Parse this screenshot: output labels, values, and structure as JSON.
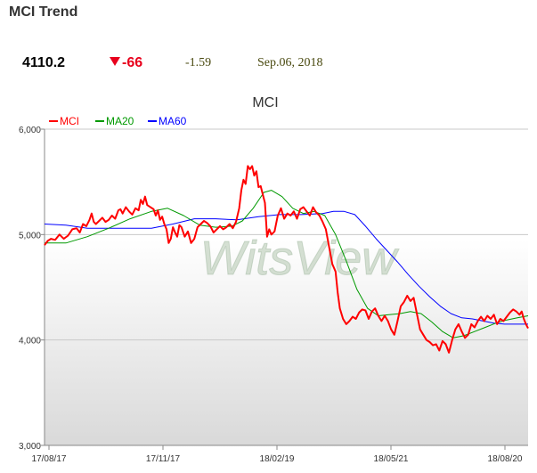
{
  "header": {
    "title": "MCI Trend",
    "price": "4110.2",
    "change": "-66",
    "change_pct": "-1.59",
    "date": "Sep.06, 2018",
    "down_color": "#e8001c"
  },
  "chart_data": {
    "type": "line",
    "title": "MCI",
    "watermark": "WitsView",
    "legend_position": "top-left",
    "ylim": [
      3000,
      6000
    ],
    "yticks": [
      "3,000",
      "4,000",
      "5,000",
      "6,000"
    ],
    "xticks": [
      "17/08/17",
      "17/11/17",
      "18/02/19",
      "18/05/21",
      "18/08/20"
    ],
    "grid": "horizontal",
    "series": [
      {
        "name": "MCI",
        "color": "#ff0000",
        "points": [
          [
            0,
            4900
          ],
          [
            3,
            4940
          ],
          [
            6,
            4960
          ],
          [
            10,
            4950
          ],
          [
            14,
            5000
          ],
          [
            18,
            4960
          ],
          [
            22,
            4990
          ],
          [
            26,
            5050
          ],
          [
            30,
            5060
          ],
          [
            33,
            5020
          ],
          [
            36,
            5100
          ],
          [
            39,
            5080
          ],
          [
            42,
            5140
          ],
          [
            44,
            5200
          ],
          [
            46,
            5120
          ],
          [
            48,
            5100
          ],
          [
            51,
            5130
          ],
          [
            54,
            5160
          ],
          [
            57,
            5120
          ],
          [
            60,
            5140
          ],
          [
            63,
            5180
          ],
          [
            66,
            5150
          ],
          [
            69,
            5230
          ],
          [
            71,
            5240
          ],
          [
            73,
            5200
          ],
          [
            76,
            5260
          ],
          [
            79,
            5220
          ],
          [
            82,
            5190
          ],
          [
            85,
            5250
          ],
          [
            88,
            5230
          ],
          [
            90,
            5330
          ],
          [
            92,
            5290
          ],
          [
            94,
            5360
          ],
          [
            96,
            5280
          ],
          [
            99,
            5260
          ],
          [
            102,
            5240
          ],
          [
            104,
            5180
          ],
          [
            106,
            5230
          ],
          [
            108,
            5140
          ],
          [
            110,
            5170
          ],
          [
            112,
            5100
          ],
          [
            114,
            5050
          ],
          [
            116,
            4920
          ],
          [
            118,
            4960
          ],
          [
            120,
            5070
          ],
          [
            122,
            5020
          ],
          [
            124,
            4980
          ],
          [
            126,
            5090
          ],
          [
            128,
            5070
          ],
          [
            131,
            4980
          ],
          [
            134,
            5030
          ],
          [
            137,
            4920
          ],
          [
            140,
            4960
          ],
          [
            143,
            5070
          ],
          [
            146,
            5100
          ],
          [
            149,
            5130
          ],
          [
            152,
            5110
          ],
          [
            155,
            5080
          ],
          [
            158,
            5020
          ],
          [
            161,
            5050
          ],
          [
            164,
            5080
          ],
          [
            167,
            5050
          ],
          [
            170,
            5070
          ],
          [
            173,
            5100
          ],
          [
            176,
            5060
          ],
          [
            179,
            5120
          ],
          [
            182,
            5250
          ],
          [
            184,
            5420
          ],
          [
            186,
            5520
          ],
          [
            188,
            5480
          ],
          [
            190,
            5650
          ],
          [
            192,
            5620
          ],
          [
            194,
            5650
          ],
          [
            196,
            5560
          ],
          [
            198,
            5600
          ],
          [
            200,
            5450
          ],
          [
            202,
            5460
          ],
          [
            204,
            5380
          ],
          [
            206,
            5300
          ],
          [
            208,
            4980
          ],
          [
            210,
            5050
          ],
          [
            212,
            5000
          ],
          [
            215,
            5030
          ],
          [
            218,
            5180
          ],
          [
            221,
            5250
          ],
          [
            224,
            5150
          ],
          [
            227,
            5200
          ],
          [
            230,
            5180
          ],
          [
            233,
            5220
          ],
          [
            236,
            5150
          ],
          [
            239,
            5240
          ],
          [
            242,
            5260
          ],
          [
            245,
            5220
          ],
          [
            248,
            5180
          ],
          [
            251,
            5260
          ],
          [
            254,
            5210
          ],
          [
            257,
            5180
          ],
          [
            260,
            5120
          ],
          [
            263,
            5050
          ],
          [
            266,
            4880
          ],
          [
            269,
            4720
          ],
          [
            272,
            4650
          ],
          [
            274,
            4450
          ],
          [
            276,
            4300
          ],
          [
            279,
            4200
          ],
          [
            282,
            4150
          ],
          [
            285,
            4180
          ],
          [
            288,
            4220
          ],
          [
            291,
            4200
          ],
          [
            294,
            4260
          ],
          [
            297,
            4290
          ],
          [
            300,
            4280
          ],
          [
            303,
            4200
          ],
          [
            306,
            4270
          ],
          [
            309,
            4300
          ],
          [
            312,
            4230
          ],
          [
            315,
            4180
          ],
          [
            318,
            4230
          ],
          [
            321,
            4180
          ],
          [
            324,
            4100
          ],
          [
            327,
            4050
          ],
          [
            330,
            4180
          ],
          [
            333,
            4320
          ],
          [
            336,
            4360
          ],
          [
            339,
            4420
          ],
          [
            342,
            4370
          ],
          [
            345,
            4400
          ],
          [
            348,
            4250
          ],
          [
            351,
            4100
          ],
          [
            354,
            4050
          ],
          [
            357,
            4000
          ],
          [
            360,
            3980
          ],
          [
            363,
            3950
          ],
          [
            366,
            3960
          ],
          [
            369,
            3900
          ],
          [
            372,
            3990
          ],
          [
            375,
            3960
          ],
          [
            378,
            3880
          ],
          [
            381,
            4000
          ],
          [
            384,
            4100
          ],
          [
            387,
            4150
          ],
          [
            390,
            4080
          ],
          [
            393,
            4020
          ],
          [
            396,
            4050
          ],
          [
            399,
            4150
          ],
          [
            402,
            4120
          ],
          [
            405,
            4180
          ],
          [
            408,
            4220
          ],
          [
            411,
            4180
          ],
          [
            414,
            4230
          ],
          [
            417,
            4200
          ],
          [
            420,
            4240
          ],
          [
            423,
            4150
          ],
          [
            426,
            4200
          ],
          [
            429,
            4180
          ],
          [
            432,
            4220
          ],
          [
            435,
            4260
          ],
          [
            438,
            4290
          ],
          [
            441,
            4270
          ],
          [
            444,
            4240
          ],
          [
            446,
            4270
          ],
          [
            448,
            4200
          ],
          [
            450,
            4150
          ],
          [
            452,
            4110
          ]
        ]
      },
      {
        "name": "MA20",
        "color": "#009900",
        "points": [
          [
            0,
            4920
          ],
          [
            20,
            4920
          ],
          [
            40,
            4980
          ],
          [
            60,
            5060
          ],
          [
            80,
            5150
          ],
          [
            100,
            5220
          ],
          [
            115,
            5250
          ],
          [
            130,
            5180
          ],
          [
            145,
            5090
          ],
          [
            160,
            5070
          ],
          [
            175,
            5080
          ],
          [
            185,
            5130
          ],
          [
            195,
            5250
          ],
          [
            205,
            5400
          ],
          [
            212,
            5420
          ],
          [
            222,
            5360
          ],
          [
            232,
            5250
          ],
          [
            242,
            5200
          ],
          [
            252,
            5220
          ],
          [
            262,
            5180
          ],
          [
            272,
            5000
          ],
          [
            282,
            4750
          ],
          [
            292,
            4480
          ],
          [
            302,
            4300
          ],
          [
            312,
            4230
          ],
          [
            322,
            4240
          ],
          [
            332,
            4250
          ],
          [
            342,
            4270
          ],
          [
            352,
            4250
          ],
          [
            362,
            4170
          ],
          [
            372,
            4080
          ],
          [
            382,
            4020
          ],
          [
            392,
            4040
          ],
          [
            402,
            4080
          ],
          [
            412,
            4120
          ],
          [
            422,
            4160
          ],
          [
            432,
            4190
          ],
          [
            442,
            4210
          ],
          [
            452,
            4230
          ]
        ]
      },
      {
        "name": "MA60",
        "color": "#0000ff",
        "points": [
          [
            0,
            5100
          ],
          [
            20,
            5090
          ],
          [
            40,
            5060
          ],
          [
            60,
            5060
          ],
          [
            80,
            5060
          ],
          [
            100,
            5060
          ],
          [
            120,
            5100
          ],
          [
            140,
            5150
          ],
          [
            160,
            5150
          ],
          [
            180,
            5140
          ],
          [
            200,
            5170
          ],
          [
            220,
            5190
          ],
          [
            240,
            5190
          ],
          [
            260,
            5200
          ],
          [
            270,
            5220
          ],
          [
            280,
            5220
          ],
          [
            290,
            5190
          ],
          [
            300,
            5080
          ],
          [
            310,
            4960
          ],
          [
            320,
            4850
          ],
          [
            330,
            4740
          ],
          [
            340,
            4620
          ],
          [
            350,
            4510
          ],
          [
            360,
            4410
          ],
          [
            370,
            4320
          ],
          [
            380,
            4250
          ],
          [
            390,
            4210
          ],
          [
            400,
            4200
          ],
          [
            410,
            4180
          ],
          [
            420,
            4160
          ],
          [
            430,
            4150
          ],
          [
            440,
            4150
          ],
          [
            452,
            4150
          ]
        ]
      }
    ]
  }
}
